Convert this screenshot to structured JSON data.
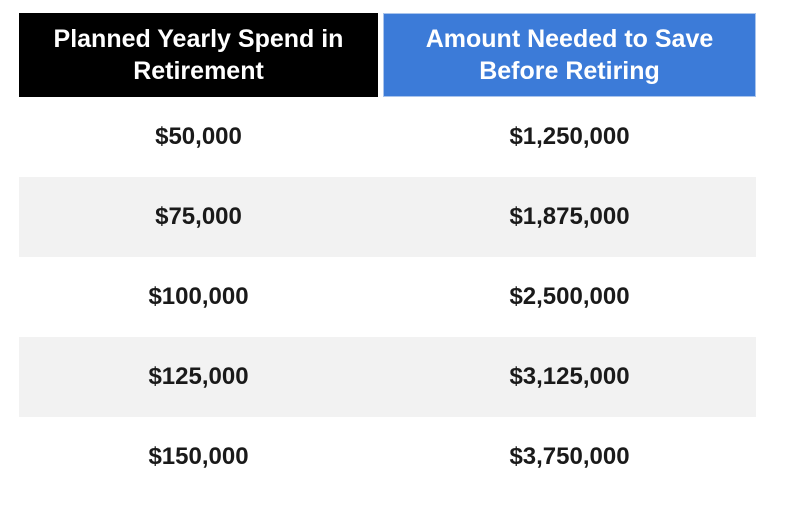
{
  "table": {
    "headers": [
      {
        "label": "Planned Yearly Spend in Retirement",
        "bg": "#000000",
        "fg": "#FFFFFF"
      },
      {
        "label": "Amount Needed to Save Before Retiring",
        "bg": "#3C7BD8",
        "fg": "#FFFFFF"
      }
    ],
    "rows": [
      [
        "$50,000",
        "$1,250,000"
      ],
      [
        "$75,000",
        "$1,875,000"
      ],
      [
        "$100,000",
        "$2,500,000"
      ],
      [
        "$125,000",
        "$3,125,000"
      ],
      [
        "$150,000",
        "$3,750,000"
      ]
    ]
  },
  "colors": {
    "header_left_bg": "#000000",
    "header_right_bg": "#3C7BD8",
    "header_right_border": "#A9C4EC",
    "header_text": "#FFFFFF",
    "stripe_bg": "#F2F2F2",
    "row_bg": "#FFFFFF",
    "body_text": "#1A1A1A"
  },
  "chart_data": {
    "type": "table",
    "columns": [
      "Planned Yearly Spend in Retirement",
      "Amount Needed to Save Before Retiring"
    ],
    "rows": [
      [
        "$50,000",
        "$1,250,000"
      ],
      [
        "$75,000",
        "$1,875,000"
      ],
      [
        "$100,000",
        "$2,500,000"
      ],
      [
        "$125,000",
        "$3,125,000"
      ],
      [
        "$150,000",
        "$3,750,000"
      ]
    ],
    "yearly_spend_values": [
      50000,
      75000,
      100000,
      125000,
      150000
    ],
    "amount_needed_values": [
      1250000,
      1875000,
      2500000,
      3125000,
      3750000
    ],
    "layout_hints": {
      "header_styles": [
        "black-fill",
        "blue-fill"
      ],
      "row_striping": "alternating white / light gray starting with white",
      "text_alignment": "center"
    }
  }
}
